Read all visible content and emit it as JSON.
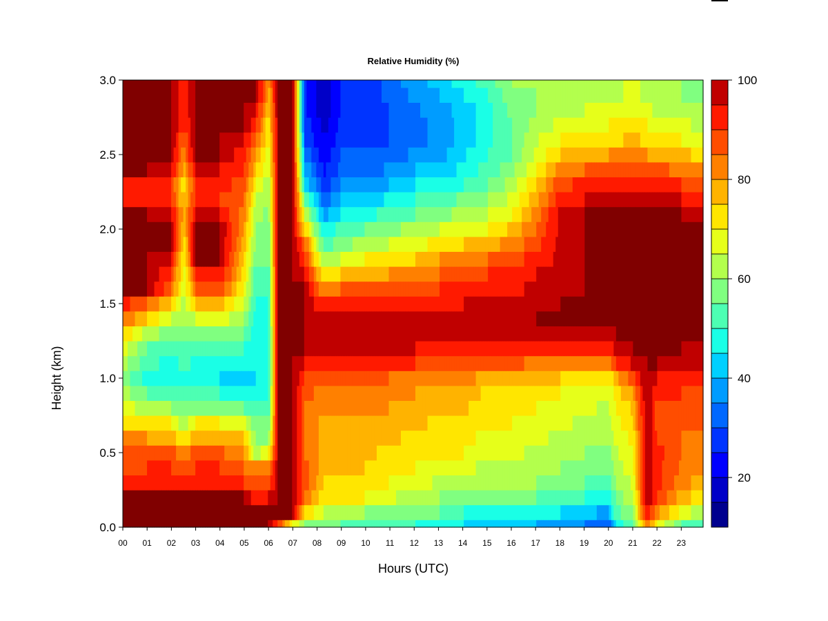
{
  "chart_data": {
    "type": "heatmap",
    "title": "Relative Humidity (%)",
    "xlabel": "Hours (UTC)",
    "ylabel": "Height (km)",
    "x_ticks": [
      "00",
      "01",
      "02",
      "03",
      "04",
      "05",
      "06",
      "07",
      "08",
      "09",
      "10",
      "11",
      "12",
      "13",
      "14",
      "15",
      "16",
      "17",
      "18",
      "19",
      "20",
      "21",
      "22",
      "23"
    ],
    "y_ticks": [
      "0.0",
      "0.5",
      "1.0",
      "1.5",
      "2.0",
      "2.5",
      "3.0"
    ],
    "xlim": [
      0,
      23.9
    ],
    "ylim": [
      0,
      3.0
    ],
    "colorbar": {
      "ticks": [
        "20",
        "40",
        "60",
        "80",
        "100"
      ],
      "range": [
        10,
        100
      ],
      "levels": [
        10,
        15,
        20,
        25,
        30,
        35,
        40,
        45,
        50,
        55,
        60,
        65,
        70,
        75,
        80,
        85,
        90,
        95,
        100
      ],
      "colors": [
        "#00008f",
        "#0000c8",
        "#0000ff",
        "#0034ff",
        "#0068ff",
        "#009cff",
        "#00d0ff",
        "#1affe6",
        "#4dffb3",
        "#80ff80",
        "#b3ff4d",
        "#e6ff1a",
        "#ffe600",
        "#ffb300",
        "#ff8000",
        "#ff4d00",
        "#ff1a00",
        "#c00000",
        "#800000"
      ]
    },
    "grid": false,
    "legend": "colorbar-right",
    "profile_heights_km": [
      0.0,
      0.1,
      0.2,
      0.3,
      0.4,
      0.5,
      0.6,
      0.7,
      0.8,
      0.9,
      1.0,
      1.1,
      1.2,
      1.3,
      1.4,
      1.5,
      1.6,
      1.7,
      1.8,
      1.9,
      2.0,
      2.1,
      2.2,
      2.3,
      2.4,
      2.5,
      2.6,
      2.7,
      2.8,
      2.9,
      3.0
    ],
    "profiles": [
      {
        "hour": 0.0,
        "rh": [
          100,
          100,
          100,
          90,
          88,
          85,
          80,
          75,
          68,
          62,
          58,
          62,
          68,
          75,
          85,
          92,
          100,
          100,
          100,
          100,
          100,
          100,
          95,
          95,
          100,
          100,
          100,
          100,
          100,
          100,
          100
        ]
      },
      {
        "hour": 1.0,
        "rh": [
          100,
          100,
          100,
          92,
          90,
          86,
          80,
          72,
          62,
          55,
          48,
          52,
          55,
          62,
          75,
          85,
          100,
          100,
          100,
          100,
          100,
          100,
          92,
          92,
          100,
          100,
          100,
          100,
          100,
          100,
          100
        ]
      },
      {
        "hour": 2.0,
        "rh": [
          100,
          100,
          100,
          92,
          90,
          88,
          78,
          70,
          60,
          50,
          45,
          48,
          52,
          58,
          65,
          75,
          85,
          90,
          95,
          100,
          100,
          95,
          90,
          90,
          95,
          100,
          100,
          100,
          100,
          100,
          100
        ]
      },
      {
        "hour": 2.5,
        "rh": [
          100,
          100,
          100,
          90,
          85,
          80,
          70,
          62,
          58,
          55,
          50,
          52,
          55,
          58,
          60,
          62,
          65,
          68,
          70,
          72,
          75,
          78,
          75,
          72,
          78,
          82,
          85,
          90,
          92,
          92,
          92
        ]
      },
      {
        "hour": 3.0,
        "rh": [
          100,
          100,
          100,
          92,
          90,
          88,
          78,
          70,
          60,
          50,
          45,
          48,
          52,
          58,
          65,
          75,
          85,
          92,
          100,
          100,
          100,
          95,
          90,
          90,
          95,
          100,
          100,
          100,
          100,
          100,
          100
        ]
      },
      {
        "hour": 4.0,
        "rh": [
          100,
          100,
          100,
          92,
          90,
          86,
          78,
          70,
          58,
          50,
          45,
          48,
          52,
          60,
          68,
          78,
          88,
          95,
          100,
          100,
          100,
          95,
          90,
          92,
          95,
          100,
          100,
          100,
          100,
          100,
          100
        ]
      },
      {
        "hour": 5.0,
        "rh": [
          100,
          100,
          100,
          90,
          85,
          80,
          75,
          68,
          55,
          48,
          42,
          45,
          50,
          55,
          60,
          65,
          70,
          72,
          75,
          78,
          80,
          82,
          85,
          88,
          90,
          92,
          95,
          100,
          100,
          100,
          100
        ]
      },
      {
        "hour": 5.5,
        "rh": [
          100,
          100,
          92,
          85,
          80,
          62,
          58,
          55,
          50,
          48,
          45,
          45,
          45,
          45,
          45,
          48,
          50,
          52,
          55,
          58,
          60,
          62,
          65,
          70,
          75,
          80,
          85,
          90,
          95,
          100,
          100
        ]
      },
      {
        "hour": 6.0,
        "rh": [
          100,
          100,
          95,
          88,
          80,
          70,
          60,
          55,
          52,
          50,
          48,
          48,
          48,
          48,
          50,
          50,
          52,
          52,
          55,
          55,
          55,
          58,
          60,
          62,
          65,
          68,
          70,
          72,
          75,
          78,
          80
        ]
      },
      {
        "hour": 6.4,
        "rh": [
          90,
          100,
          100,
          100,
          100,
          100,
          100,
          100,
          100,
          100,
          100,
          100,
          100,
          100,
          100,
          100,
          100,
          100,
          100,
          100,
          100,
          100,
          100,
          100,
          100,
          100,
          100,
          100,
          100,
          100,
          100
        ]
      },
      {
        "hour": 7.0,
        "rh": [
          70,
          100,
          100,
          100,
          100,
          100,
          100,
          100,
          100,
          100,
          100,
          100,
          100,
          100,
          100,
          100,
          100,
          100,
          100,
          100,
          100,
          100,
          100,
          100,
          100,
          100,
          100,
          100,
          100,
          100,
          100
        ]
      },
      {
        "hour": 7.5,
        "rh": [
          60,
          75,
          85,
          88,
          88,
          85,
          85,
          85,
          85,
          88,
          90,
          95,
          100,
          100,
          100,
          100,
          100,
          95,
          90,
          85,
          75,
          65,
          55,
          45,
          40,
          35,
          30,
          28,
          26,
          26,
          26
        ]
      },
      {
        "hour": 8.3,
        "rh": [
          58,
          65,
          72,
          75,
          76,
          78,
          78,
          78,
          80,
          82,
          85,
          90,
          95,
          95,
          95,
          90,
          80,
          70,
          60,
          52,
          45,
          38,
          32,
          26,
          24,
          22,
          20,
          18,
          16,
          16,
          16
        ]
      },
      {
        "hour": 9.0,
        "rh": [
          55,
          62,
          70,
          74,
          75,
          76,
          77,
          78,
          80,
          82,
          85,
          90,
          95,
          96,
          96,
          92,
          85,
          75,
          65,
          58,
          52,
          45,
          40,
          35,
          32,
          30,
          28,
          26,
          25,
          25,
          25
        ]
      },
      {
        "hour": 10.0,
        "rh": [
          52,
          60,
          70,
          74,
          75,
          76,
          78,
          78,
          80,
          82,
          85,
          92,
          96,
          96,
          96,
          92,
          86,
          78,
          70,
          62,
          55,
          48,
          42,
          36,
          32,
          30,
          28,
          27,
          26,
          26,
          26
        ]
      },
      {
        "hour": 11.0,
        "rh": [
          50,
          58,
          66,
          70,
          72,
          74,
          76,
          78,
          80,
          82,
          85,
          90,
          95,
          96,
          96,
          92,
          86,
          80,
          72,
          65,
          58,
          52,
          46,
          40,
          36,
          32,
          30,
          30,
          30,
          32,
          32
        ]
      },
      {
        "hour": 12.0,
        "rh": [
          50,
          55,
          62,
          68,
          70,
          72,
          74,
          76,
          78,
          80,
          84,
          90,
          95,
          96,
          96,
          94,
          88,
          82,
          75,
          68,
          62,
          55,
          50,
          45,
          40,
          36,
          34,
          34,
          34,
          36,
          38
        ]
      },
      {
        "hour": 13.0,
        "rh": [
          48,
          55,
          60,
          64,
          68,
          70,
          72,
          74,
          76,
          78,
          82,
          88,
          94,
          96,
          96,
          94,
          90,
          85,
          80,
          72,
          65,
          58,
          52,
          46,
          42,
          38,
          36,
          36,
          38,
          40,
          42
        ]
      },
      {
        "hour": 14.0,
        "rh": [
          45,
          50,
          58,
          62,
          66,
          70,
          72,
          74,
          76,
          78,
          82,
          88,
          94,
          96,
          96,
          95,
          92,
          88,
          82,
          75,
          68,
          62,
          56,
          50,
          46,
          44,
          42,
          42,
          42,
          45,
          48
        ]
      },
      {
        "hour": 15.0,
        "rh": [
          42,
          48,
          55,
          60,
          64,
          66,
          68,
          70,
          72,
          74,
          78,
          85,
          92,
          96,
          96,
          95,
          92,
          90,
          85,
          78,
          70,
          65,
          60,
          55,
          52,
          50,
          48,
          48,
          48,
          50,
          52
        ]
      },
      {
        "hour": 16.0,
        "rh": [
          40,
          48,
          55,
          60,
          64,
          66,
          68,
          70,
          72,
          74,
          78,
          86,
          94,
          98,
          98,
          96,
          94,
          92,
          88,
          82,
          76,
          70,
          66,
          62,
          58,
          55,
          55,
          55,
          56,
          58,
          60
        ]
      },
      {
        "hour": 17.0,
        "rh": [
          40,
          48,
          55,
          60,
          62,
          64,
          66,
          68,
          70,
          72,
          76,
          84,
          92,
          98,
          100,
          98,
          96,
          95,
          92,
          88,
          85,
          82,
          78,
          75,
          70,
          66,
          64,
          62,
          60,
          60,
          62
        ]
      },
      {
        "hour": 18.0,
        "rh": [
          38,
          45,
          52,
          58,
          60,
          62,
          64,
          66,
          68,
          70,
          75,
          82,
          90,
          98,
          100,
          100,
          98,
          96,
          96,
          96,
          96,
          96,
          92,
          88,
          82,
          75,
          70,
          66,
          64,
          62,
          62
        ]
      },
      {
        "hour": 19.0,
        "rh": [
          35,
          42,
          50,
          55,
          58,
          60,
          62,
          64,
          66,
          68,
          72,
          80,
          90,
          98,
          100,
          100,
          100,
          100,
          100,
          100,
          100,
          100,
          95,
          92,
          85,
          78,
          72,
          68,
          65,
          64,
          64
        ]
      },
      {
        "hour": 20.0,
        "rh": [
          30,
          38,
          45,
          52,
          56,
          58,
          60,
          62,
          64,
          66,
          70,
          80,
          92,
          98,
          100,
          100,
          100,
          100,
          100,
          100,
          100,
          100,
          96,
          92,
          86,
          80,
          74,
          70,
          66,
          64,
          64
        ]
      },
      {
        "hour": 20.3,
        "rh": [
          45,
          52,
          56,
          60,
          62,
          64,
          66,
          68,
          70,
          72,
          78,
          90,
          96,
          100,
          100,
          100,
          100,
          100,
          100,
          100,
          100,
          100,
          96,
          92,
          86,
          80,
          74,
          70,
          66,
          64,
          64
        ]
      },
      {
        "hour": 21.0,
        "rh": [
          55,
          60,
          64,
          66,
          68,
          70,
          72,
          74,
          76,
          80,
          88,
          96,
          100,
          100,
          100,
          100,
          100,
          100,
          100,
          100,
          100,
          100,
          98,
          94,
          88,
          82,
          76,
          72,
          68,
          66,
          66
        ]
      },
      {
        "hour": 21.6,
        "rh": [
          85,
          95,
          100,
          100,
          100,
          100,
          100,
          100,
          100,
          100,
          100,
          100,
          100,
          100,
          100,
          100,
          100,
          100,
          100,
          100,
          100,
          100,
          96,
          92,
          86,
          80,
          74,
          70,
          66,
          64,
          64
        ]
      },
      {
        "hour": 22.0,
        "rh": [
          70,
          82,
          90,
          92,
          92,
          92,
          90,
          88,
          88,
          90,
          95,
          100,
          100,
          100,
          100,
          100,
          100,
          100,
          100,
          100,
          100,
          100,
          96,
          92,
          86,
          78,
          72,
          68,
          64,
          62,
          62
        ]
      },
      {
        "hour": 23.0,
        "rh": [
          55,
          68,
          78,
          82,
          84,
          85,
          85,
          86,
          88,
          90,
          92,
          96,
          100,
          100,
          100,
          100,
          100,
          100,
          100,
          100,
          100,
          100,
          95,
          90,
          84,
          76,
          70,
          66,
          62,
          60,
          60
        ]
      },
      {
        "hour": 23.9,
        "rh": [
          50,
          62,
          72,
          78,
          80,
          82,
          84,
          85,
          86,
          88,
          90,
          95,
          98,
          100,
          100,
          100,
          100,
          100,
          100,
          100,
          100,
          98,
          92,
          86,
          80,
          74,
          68,
          64,
          60,
          58,
          58
        ]
      }
    ]
  }
}
